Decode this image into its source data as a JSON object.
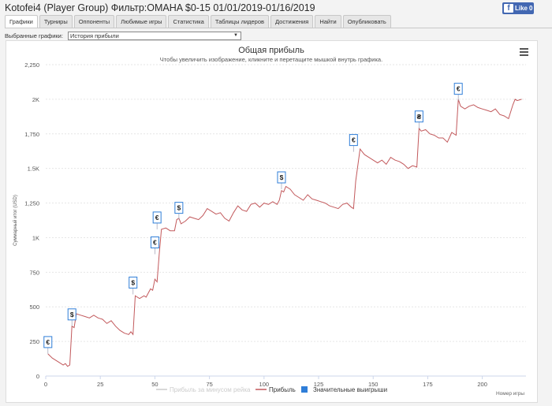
{
  "page": {
    "title": "Kotofei4 (Player Group) Фильтр:OMAHA $0-15 01/01/2019-01/16/2019",
    "fb_like": "Like",
    "fb_count": "0"
  },
  "tabs": [
    {
      "label": "Графики",
      "active": true
    },
    {
      "label": "Турниры",
      "active": false
    },
    {
      "label": "Оппоненты",
      "active": false
    },
    {
      "label": "Любимые игры",
      "active": false
    },
    {
      "label": "Статистика",
      "active": false
    },
    {
      "label": "Таблицы лидеров",
      "active": false
    },
    {
      "label": "Достижения",
      "active": false
    },
    {
      "label": "Найти",
      "active": false
    },
    {
      "label": "Опубликовать",
      "active": false
    }
  ],
  "selector": {
    "label": "Выбранные графики:",
    "value": "История прибыли"
  },
  "colors": {
    "profit": "#c2595c",
    "rake": "#cccccc",
    "wins": "#2f7ed8",
    "grid": "#e6e6e6"
  },
  "chart_data": {
    "type": "line",
    "title": "Общая прибыль",
    "subtitle": "Чтобы увеличить изображение, кликните и перетащите мышкой внутрь графика.",
    "xlabel": "Номер игры",
    "ylabel": "Суммарный итог (USD)",
    "xlim": [
      0,
      220
    ],
    "ylim": [
      0,
      2250
    ],
    "yticks": [
      0,
      250,
      500,
      750,
      1000,
      1250,
      1500,
      1750,
      2000,
      2250
    ],
    "ytick_labels": [
      "0",
      "250",
      "500",
      "750",
      "1K",
      "1,250",
      "1.5K",
      "1,750",
      "2K",
      "2,250"
    ],
    "xticks": [
      0,
      25,
      50,
      75,
      100,
      125,
      150,
      175,
      200
    ],
    "xtick_labels": [
      "0",
      "25",
      "50",
      "75",
      "100",
      "125",
      "150",
      "175",
      "200"
    ],
    "legend": [
      {
        "name": "Прибыль за минусом рейка",
        "color": "#cccccc",
        "visible": false
      },
      {
        "name": "Прибыль",
        "color": "#c2595c",
        "visible": true
      },
      {
        "name": "Значительные выигрыши",
        "color": "#2f7ed8",
        "visible": true
      }
    ],
    "series": [
      {
        "name": "Прибыль",
        "x": [
          1,
          3,
          6,
          8,
          9,
          10,
          11,
          12,
          13,
          14,
          16,
          18,
          20,
          22,
          24,
          26,
          28,
          30,
          32,
          34,
          36,
          38,
          39,
          40,
          41,
          43,
          45,
          46,
          48,
          49,
          50,
          51,
          52,
          53,
          55,
          57,
          59,
          60,
          61,
          62,
          64,
          66,
          68,
          70,
          72,
          74,
          76,
          78,
          80,
          82,
          84,
          86,
          88,
          90,
          92,
          94,
          96,
          98,
          100,
          102,
          104,
          106,
          107,
          108,
          109,
          110,
          112,
          114,
          116,
          118,
          120,
          122,
          124,
          126,
          128,
          130,
          132,
          134,
          136,
          138,
          140,
          141,
          142,
          144,
          146,
          148,
          150,
          152,
          154,
          156,
          158,
          160,
          162,
          164,
          166,
          168,
          170,
          171,
          172,
          174,
          176,
          178,
          180,
          182,
          184,
          186,
          188,
          189,
          190,
          192,
          194,
          196,
          198,
          200,
          202,
          204,
          206,
          208,
          210,
          212,
          214,
          215,
          216,
          218
        ],
        "y": [
          160,
          130,
          100,
          80,
          90,
          70,
          80,
          360,
          350,
          450,
          440,
          430,
          420,
          440,
          420,
          410,
          380,
          400,
          360,
          330,
          310,
          300,
          320,
          300,
          580,
          560,
          580,
          570,
          630,
          620,
          700,
          680,
          880,
          1060,
          1070,
          1050,
          1050,
          1130,
          1140,
          1100,
          1120,
          1150,
          1140,
          1130,
          1160,
          1210,
          1190,
          1170,
          1180,
          1140,
          1120,
          1180,
          1230,
          1200,
          1190,
          1240,
          1250,
          1220,
          1250,
          1240,
          1260,
          1240,
          1270,
          1340,
          1330,
          1370,
          1350,
          1310,
          1290,
          1270,
          1310,
          1280,
          1270,
          1260,
          1250,
          1230,
          1220,
          1210,
          1240,
          1250,
          1220,
          1210,
          1410,
          1640,
          1600,
          1580,
          1560,
          1540,
          1560,
          1530,
          1580,
          1560,
          1550,
          1530,
          1500,
          1520,
          1510,
          1790,
          1770,
          1780,
          1750,
          1740,
          1720,
          1720,
          1690,
          1760,
          1740,
          2000,
          1950,
          1930,
          1950,
          1960,
          1940,
          1930,
          1920,
          1910,
          1930,
          1890,
          1880,
          1860,
          1960,
          2000,
          1990,
          2000
        ],
        "markers": [
          {
            "x": 1,
            "y": 160,
            "symbol": "€"
          },
          {
            "x": 12,
            "y": 360,
            "symbol": "$"
          },
          {
            "x": 40,
            "y": 590,
            "symbol": "$"
          },
          {
            "x": 50,
            "y": 880,
            "symbol": "€"
          },
          {
            "x": 51,
            "y": 1060,
            "symbol": "€"
          },
          {
            "x": 61,
            "y": 1130,
            "symbol": "$"
          },
          {
            "x": 108,
            "y": 1350,
            "symbol": "$"
          },
          {
            "x": 141,
            "y": 1620,
            "symbol": "€"
          },
          {
            "x": 171,
            "y": 1790,
            "symbol": "₴"
          },
          {
            "x": 189,
            "y": 1990,
            "symbol": "€"
          }
        ]
      }
    ]
  }
}
